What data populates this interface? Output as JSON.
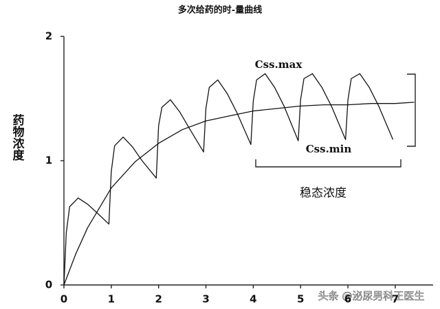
{
  "chart_data": {
    "type": "line",
    "title": "多次给药的时-量曲线",
    "y_label": "药物浓度",
    "annotations": {
      "css_max": "Css.max",
      "css_min": "Css.min",
      "steady": "稳态浓度"
    },
    "watermark": "头条 @泌尿男科王医生",
    "xlim": [
      0,
      7.8
    ],
    "ylim": [
      0,
      2
    ],
    "xticks": [
      0,
      1,
      2,
      3,
      4,
      5,
      6,
      7
    ],
    "yticks": [
      0,
      1,
      2
    ],
    "series": [
      {
        "color": "#111111",
        "x": [
          0,
          0.05,
          0.12,
          0.3,
          0.5,
          0.7,
          0.95,
          1.0,
          1.07,
          1.25,
          1.45,
          1.65,
          1.95,
          2.0,
          2.07,
          2.25,
          2.45,
          2.65,
          2.95,
          3.0,
          3.07,
          3.25,
          3.45,
          3.65,
          3.95,
          4.0,
          4.07,
          4.25,
          4.45,
          4.65,
          4.95,
          5.0,
          5.07,
          5.25,
          5.45,
          5.65,
          5.95,
          6.0,
          6.07,
          6.25,
          6.45,
          6.65,
          6.95
        ],
        "values": [
          0,
          0.42,
          0.63,
          0.7,
          0.65,
          0.58,
          0.49,
          0.91,
          1.12,
          1.19,
          1.11,
          1.0,
          0.86,
          1.28,
          1.43,
          1.49,
          1.39,
          1.26,
          1.07,
          1.42,
          1.59,
          1.65,
          1.54,
          1.39,
          1.13,
          1.48,
          1.65,
          1.7,
          1.59,
          1.44,
          1.16,
          1.49,
          1.66,
          1.7,
          1.59,
          1.44,
          1.17,
          1.49,
          1.66,
          1.7,
          1.59,
          1.44,
          1.17
        ]
      },
      {
        "color": "#111111",
        "x": [
          0,
          0.25,
          0.5,
          1,
          1.5,
          2,
          2.5,
          3,
          3.5,
          4,
          4.5,
          5,
          5.5,
          6,
          6.5,
          7,
          7.4
        ],
        "values": [
          0,
          0.25,
          0.46,
          0.78,
          0.99,
          1.14,
          1.25,
          1.32,
          1.36,
          1.4,
          1.42,
          1.44,
          1.45,
          1.45,
          1.46,
          1.46,
          1.47
        ]
      }
    ]
  }
}
